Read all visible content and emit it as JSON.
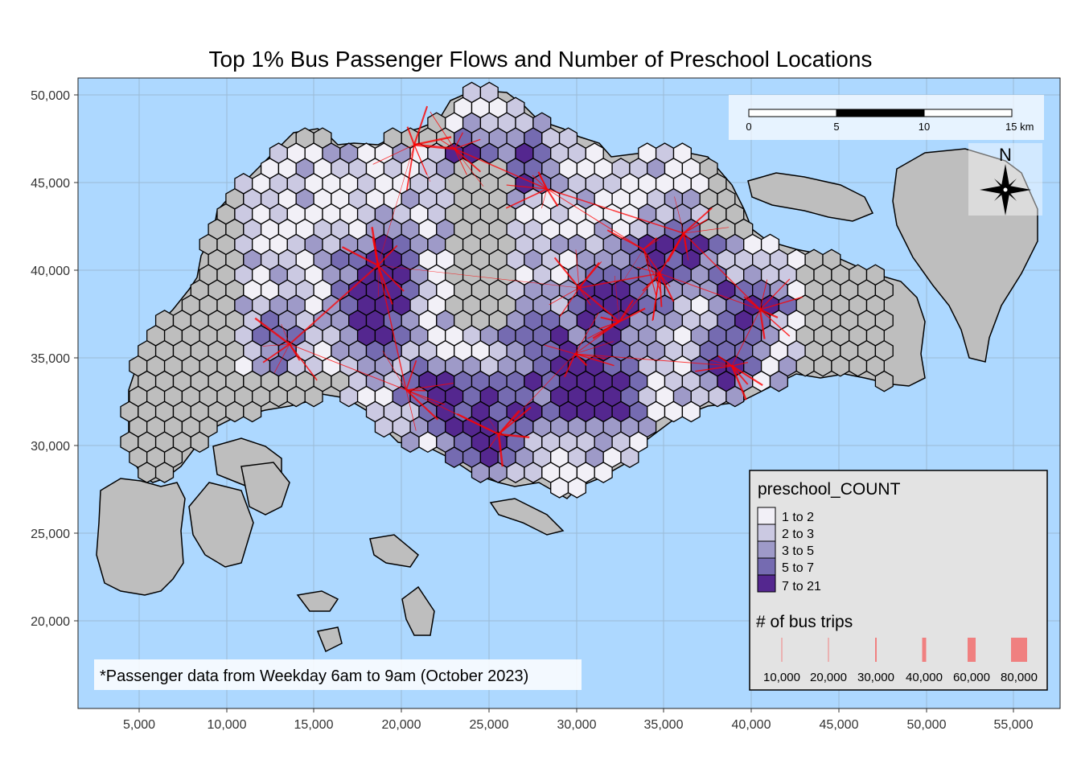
{
  "title": "Top 1% Bus Passenger Flows and Number of Preschool Locations",
  "axes": {
    "x_ticks": [
      "5,000",
      "10,000",
      "15,000",
      "20,000",
      "25,000",
      "30,000",
      "35,000",
      "40,000",
      "45,000",
      "50,000",
      "55,000"
    ],
    "y_ticks": [
      "50,000",
      "45,000",
      "40,000",
      "35,000",
      "30,000",
      "25,000",
      "20,000"
    ]
  },
  "scale_bar": {
    "labels": [
      "0",
      "5",
      "10",
      "15 km"
    ]
  },
  "north_arrow": {
    "label": "N",
    "icon": "compass-rose-icon"
  },
  "legend": {
    "fill_title": "preschool_COUNT",
    "fill_classes": [
      {
        "label": "1 to 2",
        "color": "#f2f0f7"
      },
      {
        "label": "2 to 3",
        "color": "#cbc9e2"
      },
      {
        "label": "3 to 5",
        "color": "#9e9ac8"
      },
      {
        "label": "5 to 7",
        "color": "#756bb1"
      },
      {
        "label": "7 to 21",
        "color": "#54278f"
      }
    ],
    "line_title": "# of bus trips",
    "line_classes": [
      {
        "label": "10,000",
        "width": 1
      },
      {
        "label": "20,000",
        "width": 1
      },
      {
        "label": "30,000",
        "width": 2
      },
      {
        "label": "40,000",
        "width": 5
      },
      {
        "label": "60,000",
        "width": 10
      },
      {
        "label": "80,000",
        "width": 20
      }
    ],
    "line_color": "#f08080"
  },
  "credits": "*Passenger data from Weekday 6am to 9am (October 2023)",
  "colors": {
    "water": "#add8ff",
    "land": "#bebebe",
    "no_data_hex": "#bebebe",
    "flow": "#ff0000"
  }
}
